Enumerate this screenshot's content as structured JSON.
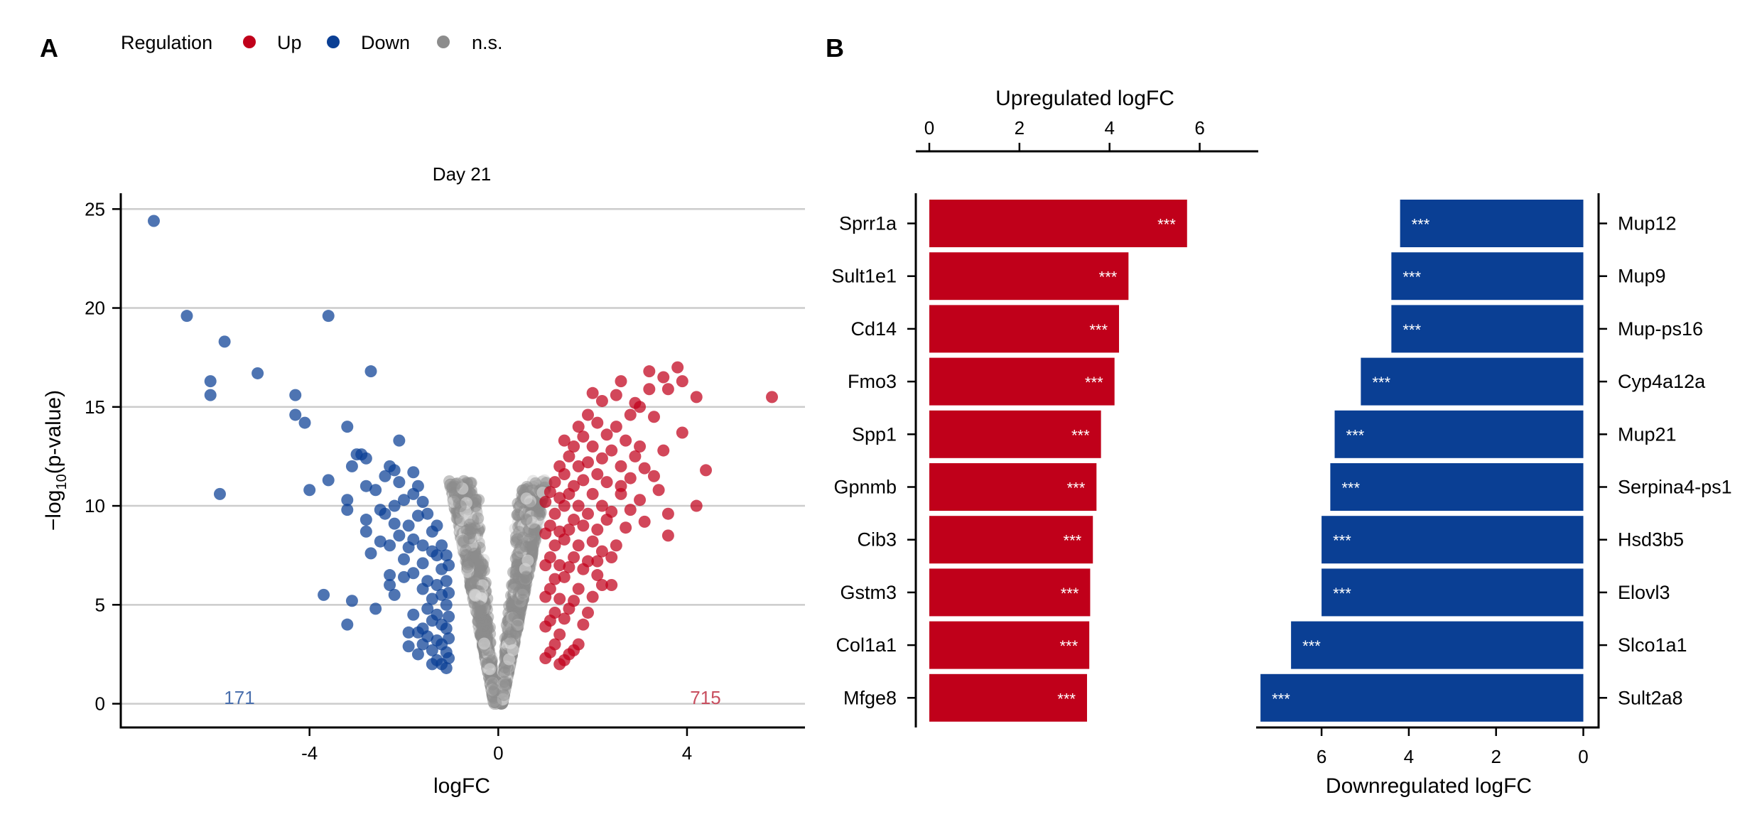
{
  "panel_a": {
    "letter": "A",
    "legend": {
      "title": "Regulation",
      "items": [
        {
          "label": "Up",
          "color": "#c0001a"
        },
        {
          "label": "Down",
          "color": "#0a3f94"
        },
        {
          "label": "n.s.",
          "color": "#8c8c8c"
        }
      ]
    }
  },
  "panel_b": {
    "letter": "B"
  },
  "chart_data": [
    {
      "type": "scatter",
      "title": "Day 21",
      "xlabel": "logFC",
      "ylabel": "−log10(p-value)",
      "xlim": [
        -8,
        6.5
      ],
      "ylim": [
        -1.2,
        25.8
      ],
      "x_ticks": [
        -4,
        0,
        4
      ],
      "y_ticks": [
        0,
        5,
        10,
        15,
        20,
        25
      ],
      "grid": "horizontal",
      "legend_placement": "top-left",
      "counts": {
        "down": "171",
        "up": "715"
      },
      "colors": {
        "up": "#c0001a",
        "down": "#0a3f94",
        "ns": "#8c8c8c"
      },
      "series": [
        {
          "name": "Down",
          "points": [
            [
              -7.3,
              24.4
            ],
            [
              -6.6,
              19.6
            ],
            [
              -5.8,
              18.3
            ],
            [
              -6.1,
              16.3
            ],
            [
              -6.1,
              15.6
            ],
            [
              -5.9,
              10.6
            ],
            [
              -5.1,
              16.7
            ],
            [
              -4.3,
              15.6
            ],
            [
              -4.3,
              14.6
            ],
            [
              -4.1,
              14.2
            ],
            [
              -4.0,
              10.8
            ],
            [
              -3.6,
              19.6
            ],
            [
              -3.6,
              11.3
            ],
            [
              -3.7,
              5.5
            ],
            [
              -3.2,
              14.0
            ],
            [
              -3.2,
              10.3
            ],
            [
              -3.2,
              9.8
            ],
            [
              -3.2,
              4.0
            ],
            [
              -3.1,
              5.2
            ],
            [
              -3.1,
              12.0
            ],
            [
              -3.0,
              12.6
            ],
            [
              -2.9,
              12.6
            ],
            [
              -2.8,
              12.4
            ],
            [
              -2.8,
              11.0
            ],
            [
              -2.8,
              9.3
            ],
            [
              -2.8,
              8.7
            ],
            [
              -2.7,
              16.8
            ],
            [
              -2.7,
              7.6
            ],
            [
              -2.6,
              10.8
            ],
            [
              -2.6,
              4.8
            ],
            [
              -2.5,
              9.8
            ],
            [
              -2.5,
              8.2
            ],
            [
              -2.4,
              11.5
            ],
            [
              -2.4,
              9.6
            ],
            [
              -2.3,
              12.0
            ],
            [
              -2.3,
              8.0
            ],
            [
              -2.3,
              6.5
            ],
            [
              -2.3,
              6.0
            ],
            [
              -2.2,
              11.8
            ],
            [
              -2.2,
              10.0
            ],
            [
              -2.2,
              9.1
            ],
            [
              -2.2,
              5.5
            ],
            [
              -2.1,
              13.3
            ],
            [
              -2.1,
              11.2
            ],
            [
              -2.1,
              8.5
            ],
            [
              -2.0,
              10.3
            ],
            [
              -2.0,
              7.3
            ],
            [
              -2.0,
              6.4
            ],
            [
              -1.9,
              9.0
            ],
            [
              -1.9,
              7.9
            ],
            [
              -1.9,
              3.6
            ],
            [
              -1.8,
              11.7
            ],
            [
              -1.8,
              10.6
            ],
            [
              -1.8,
              8.3
            ],
            [
              -1.8,
              6.6
            ],
            [
              -1.8,
              4.5
            ],
            [
              -1.7,
              11.0
            ],
            [
              -1.7,
              9.5
            ],
            [
              -1.7,
              3.6
            ],
            [
              -1.6,
              10.2
            ],
            [
              -1.6,
              8.0
            ],
            [
              -1.6,
              7.1
            ],
            [
              -1.6,
              5.8
            ],
            [
              -1.6,
              3.0
            ],
            [
              -1.5,
              9.6
            ],
            [
              -1.5,
              6.2
            ],
            [
              -1.5,
              4.8
            ],
            [
              -1.4,
              8.7
            ],
            [
              -1.4,
              7.7
            ],
            [
              -1.4,
              5.3
            ],
            [
              -1.4,
              4.2
            ],
            [
              -1.4,
              2.7
            ],
            [
              -1.3,
              9.0
            ],
            [
              -1.3,
              7.5
            ],
            [
              -1.3,
              6.0
            ],
            [
              -1.3,
              4.5
            ],
            [
              -1.3,
              3.2
            ],
            [
              -1.3,
              2.2
            ],
            [
              -1.2,
              8.0
            ],
            [
              -1.2,
              6.8
            ],
            [
              -1.2,
              5.5
            ],
            [
              -1.2,
              4.0
            ],
            [
              -1.2,
              3.0
            ],
            [
              -1.2,
              2.0
            ],
            [
              -1.1,
              7.5
            ],
            [
              -1.1,
              6.2
            ],
            [
              -1.1,
              5.0
            ],
            [
              -1.1,
              3.8
            ],
            [
              -1.1,
              2.6
            ],
            [
              -1.1,
              1.8
            ],
            [
              -1.05,
              7.0
            ],
            [
              -1.05,
              5.6
            ],
            [
              -1.05,
              4.4
            ],
            [
              -1.05,
              3.3
            ],
            [
              -1.05,
              2.3
            ],
            [
              -1.4,
              2.0
            ],
            [
              -1.5,
              3.4
            ],
            [
              -1.7,
              2.5
            ],
            [
              -1.6,
              3.8
            ],
            [
              -1.9,
              2.9
            ]
          ]
        },
        {
          "name": "Up",
          "points": [
            [
              5.8,
              15.5
            ],
            [
              4.4,
              11.8
            ],
            [
              4.2,
              10.0
            ],
            [
              4.2,
              15.5
            ],
            [
              3.9,
              13.7
            ],
            [
              3.9,
              16.3
            ],
            [
              3.8,
              17.0
            ],
            [
              3.6,
              15.9
            ],
            [
              3.6,
              8.5
            ],
            [
              3.6,
              9.6
            ],
            [
              3.5,
              12.8
            ],
            [
              3.5,
              16.5
            ],
            [
              3.4,
              10.8
            ],
            [
              3.3,
              11.5
            ],
            [
              3.3,
              14.5
            ],
            [
              3.2,
              15.9
            ],
            [
              3.2,
              16.8
            ],
            [
              3.1,
              11.9
            ],
            [
              3.1,
              9.2
            ],
            [
              3.0,
              13.0
            ],
            [
              3.0,
              15.0
            ],
            [
              3.0,
              10.3
            ],
            [
              2.9,
              12.5
            ],
            [
              2.9,
              15.2
            ],
            [
              2.8,
              9.8
            ],
            [
              2.8,
              14.6
            ],
            [
              2.7,
              13.3
            ],
            [
              2.7,
              8.9
            ],
            [
              2.6,
              16.3
            ],
            [
              2.6,
              12.0
            ],
            [
              2.6,
              10.6
            ],
            [
              2.5,
              15.6
            ],
            [
              2.5,
              14.0
            ],
            [
              2.5,
              8.0
            ],
            [
              2.4,
              12.8
            ],
            [
              2.4,
              7.4
            ],
            [
              2.4,
              6.0
            ],
            [
              2.3,
              13.6
            ],
            [
              2.3,
              11.2
            ],
            [
              2.3,
              9.3
            ],
            [
              2.2,
              15.3
            ],
            [
              2.2,
              12.4
            ],
            [
              2.2,
              10.0
            ],
            [
              2.2,
              7.7
            ],
            [
              2.2,
              6.0
            ],
            [
              2.1,
              14.2
            ],
            [
              2.1,
              11.6
            ],
            [
              2.1,
              8.8
            ],
            [
              2.1,
              6.5
            ],
            [
              2.0,
              15.7
            ],
            [
              2.0,
              13.0
            ],
            [
              2.0,
              10.6
            ],
            [
              2.0,
              8.2
            ],
            [
              2.0,
              5.4
            ],
            [
              1.9,
              14.6
            ],
            [
              1.9,
              12.2
            ],
            [
              1.9,
              9.6
            ],
            [
              1.9,
              7.2
            ],
            [
              1.9,
              4.6
            ],
            [
              1.8,
              13.5
            ],
            [
              1.8,
              11.3
            ],
            [
              1.8,
              9.0
            ],
            [
              1.8,
              6.8
            ],
            [
              1.8,
              4.0
            ],
            [
              1.7,
              14.0
            ],
            [
              1.7,
              12.0
            ],
            [
              1.7,
              10.0
            ],
            [
              1.7,
              8.0
            ],
            [
              1.7,
              5.8
            ],
            [
              1.7,
              3.0
            ],
            [
              1.6,
              13.0
            ],
            [
              1.6,
              11.0
            ],
            [
              1.6,
              9.3
            ],
            [
              1.6,
              7.4
            ],
            [
              1.6,
              5.2
            ],
            [
              1.6,
              2.7
            ],
            [
              1.5,
              12.5
            ],
            [
              1.5,
              10.6
            ],
            [
              1.5,
              8.8
            ],
            [
              1.5,
              6.9
            ],
            [
              1.5,
              4.8
            ],
            [
              1.5,
              2.5
            ],
            [
              1.4,
              13.3
            ],
            [
              1.4,
              11.6
            ],
            [
              1.4,
              10.0
            ],
            [
              1.4,
              8.3
            ],
            [
              1.4,
              6.4
            ],
            [
              1.4,
              4.3
            ],
            [
              1.4,
              2.2
            ],
            [
              1.3,
              12.0
            ],
            [
              1.3,
              10.4
            ],
            [
              1.3,
              8.7
            ],
            [
              1.3,
              7.0
            ],
            [
              1.3,
              5.3
            ],
            [
              1.3,
              3.5
            ],
            [
              1.3,
              2.0
            ],
            [
              1.2,
              11.2
            ],
            [
              1.2,
              9.6
            ],
            [
              1.2,
              8.0
            ],
            [
              1.2,
              6.3
            ],
            [
              1.2,
              4.6
            ],
            [
              1.2,
              3.0
            ],
            [
              1.1,
              10.7
            ],
            [
              1.1,
              9.0
            ],
            [
              1.1,
              7.4
            ],
            [
              1.1,
              5.8
            ],
            [
              1.1,
              4.2
            ],
            [
              1.1,
              2.6
            ],
            [
              1.0,
              10.2
            ],
            [
              1.0,
              8.6
            ],
            [
              1.0,
              7.0
            ],
            [
              1.0,
              5.4
            ],
            [
              1.0,
              3.9
            ],
            [
              1.0,
              2.3
            ],
            [
              2.6,
              11.0
            ],
            [
              2.4,
              9.7
            ],
            [
              2.8,
              11.4
            ],
            [
              2.1,
              7.2
            ]
          ]
        }
      ]
    },
    {
      "type": "bar",
      "orientation": "horizontal",
      "title": "Upregulated logFC",
      "xlim": [
        0,
        7.3
      ],
      "x_ticks": [
        0,
        2,
        4,
        6
      ],
      "categories": [
        "Sprr1a",
        "Sult1e1",
        "Cd14",
        "Fmo3",
        "Spp1",
        "Gpnmb",
        "Cib3",
        "Gstm3",
        "Col1a1",
        "Mfge8"
      ],
      "values": [
        5.72,
        4.42,
        4.21,
        4.11,
        3.81,
        3.71,
        3.63,
        3.57,
        3.55,
        3.5
      ],
      "labels": [
        "***",
        "***",
        "***",
        "***",
        "***",
        "***",
        "***",
        "***",
        "***",
        "***"
      ],
      "color": "#c0001a"
    },
    {
      "type": "bar",
      "orientation": "horizontal",
      "title": "Downregulated logFC",
      "xlim": [
        7.5,
        -0.35
      ],
      "x_ticks": [
        6,
        4,
        2,
        0
      ],
      "categories": [
        "Mup12",
        "Mup9",
        "Mup-ps16",
        "Cyp4a12a",
        "Mup21",
        "Serpina4-ps1",
        "Hsd3b5",
        "Elovl3",
        "Slco1a1",
        "Sult2a8"
      ],
      "values": [
        4.2,
        4.4,
        4.4,
        5.1,
        5.7,
        5.8,
        6.0,
        6.0,
        6.7,
        7.4
      ],
      "labels": [
        "***",
        "***",
        "***",
        "***",
        "***",
        "***",
        "***",
        "***",
        "***",
        "***"
      ],
      "color": "#0a3f94"
    }
  ]
}
